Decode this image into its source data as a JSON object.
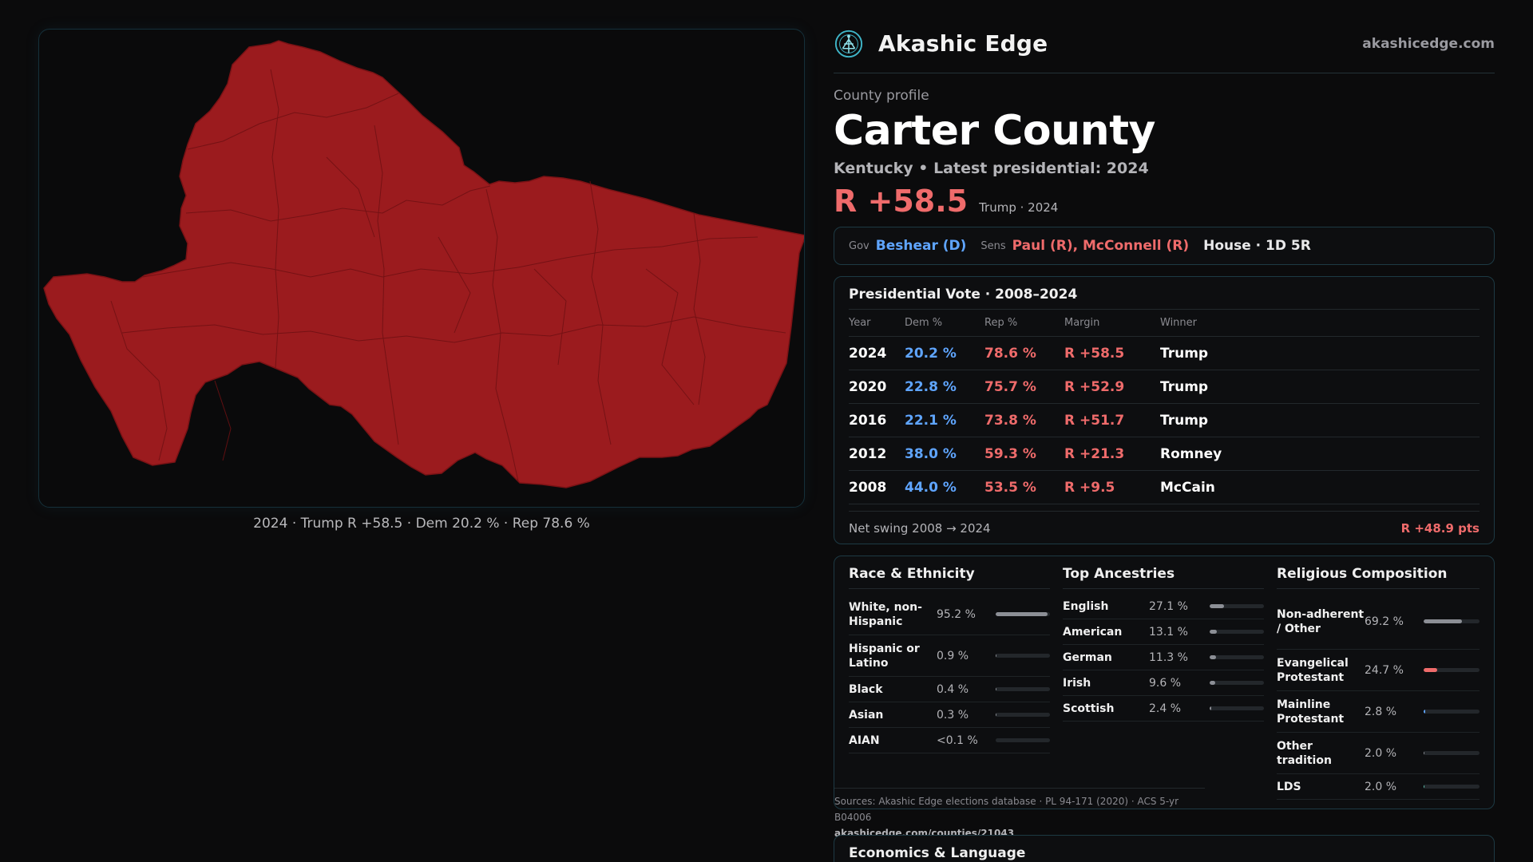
{
  "map": {
    "fill_color": "#9b1b1e",
    "caption": "2024 · Trump R +58.5 · Dem 20.2 % · Rep 78.6 %"
  },
  "brand": {
    "name": "Akashic Edge",
    "url": "akashicedge.com",
    "logo_icon": "tree-of-life-icon"
  },
  "county": {
    "kicker": "County profile",
    "name": "Carter County",
    "subtitle": "Kentucky • Latest presidential: 2024",
    "margin": "R +58.5",
    "margin_note": "Trump · 2024"
  },
  "officials": {
    "gov_label": "Gov",
    "gov": "Beshear (D)",
    "sens_label": "Sens",
    "sens": "Paul (R), McConnell (R)",
    "house": "House · 1D 5R"
  },
  "presidential": {
    "title": "Presidential Vote · 2008–2024",
    "headers": [
      "Year",
      "Dem %",
      "Rep %",
      "Margin",
      "Winner"
    ],
    "rows": [
      {
        "year": "2024",
        "dem": "20.2 %",
        "rep": "78.6 %",
        "margin": "R +58.5",
        "winner": "Trump"
      },
      {
        "year": "2020",
        "dem": "22.8 %",
        "rep": "75.7 %",
        "margin": "R +52.9",
        "winner": "Trump"
      },
      {
        "year": "2016",
        "dem": "22.1 %",
        "rep": "73.8 %",
        "margin": "R +51.7",
        "winner": "Trump"
      },
      {
        "year": "2012",
        "dem": "38.0 %",
        "rep": "59.3 %",
        "margin": "R +21.3",
        "winner": "Romney"
      },
      {
        "year": "2008",
        "dem": "44.0 %",
        "rep": "53.5 %",
        "margin": "R +9.5",
        "winner": "McCain"
      }
    ],
    "swing_label": "Net swing 2008 → 2024",
    "swing_value": "R +48.9 pts"
  },
  "race": {
    "title": "Race & Ethnicity",
    "rows": [
      {
        "label": "White, non-Hispanic",
        "pct": "95.2 %",
        "frac": 0.952,
        "color": "#8c8f96"
      },
      {
        "label": "Hispanic or Latino",
        "pct": "0.9 %",
        "frac": 0.009,
        "color": "#8c8f96"
      },
      {
        "label": "Black",
        "pct": "0.4 %",
        "frac": 0.004,
        "color": "#8c8f96"
      },
      {
        "label": "Asian",
        "pct": "0.3 %",
        "frac": 0.003,
        "color": "#8c8f96"
      },
      {
        "label": "AIAN",
        "pct": "<0.1 %",
        "frac": 0.0,
        "color": "#8c8f96"
      }
    ]
  },
  "ancestry": {
    "title": "Top Ancestries",
    "rows": [
      {
        "label": "English",
        "pct": "27.1 %",
        "frac": 0.271,
        "color": "#8c8f96"
      },
      {
        "label": "American",
        "pct": "13.1 %",
        "frac": 0.131,
        "color": "#8c8f96"
      },
      {
        "label": "German",
        "pct": "11.3 %",
        "frac": 0.113,
        "color": "#8c8f96"
      },
      {
        "label": "Irish",
        "pct": "9.6 %",
        "frac": 0.096,
        "color": "#8c8f96"
      },
      {
        "label": "Scottish",
        "pct": "2.4 %",
        "frac": 0.024,
        "color": "#8c8f96"
      }
    ]
  },
  "religion": {
    "title": "Religious Composition",
    "rows": [
      {
        "label": "Non-adherent / Other",
        "pct": "69.2 %",
        "frac": 0.692,
        "color": "#8c8f96"
      },
      {
        "label": "Evangelical Protestant",
        "pct": "24.7 %",
        "frac": 0.247,
        "color": "#ef6b6b"
      },
      {
        "label": "Mainline Protestant",
        "pct": "2.8 %",
        "frac": 0.028,
        "color": "#5fa5ff"
      },
      {
        "label": "Other tradition",
        "pct": "2.0 %",
        "frac": 0.02,
        "color": "#8c8f96"
      },
      {
        "label": "LDS",
        "pct": "2.0 %",
        "frac": 0.02,
        "color": "#5fc3b0"
      }
    ]
  },
  "sources": {
    "text": "Sources: Akashic Edge elections database · PL 94-171 (2020) · ACS 5-yr B04006",
    "url": "akashicedge.com/counties/21043"
  },
  "economics": {
    "title": "Economics & Language"
  }
}
